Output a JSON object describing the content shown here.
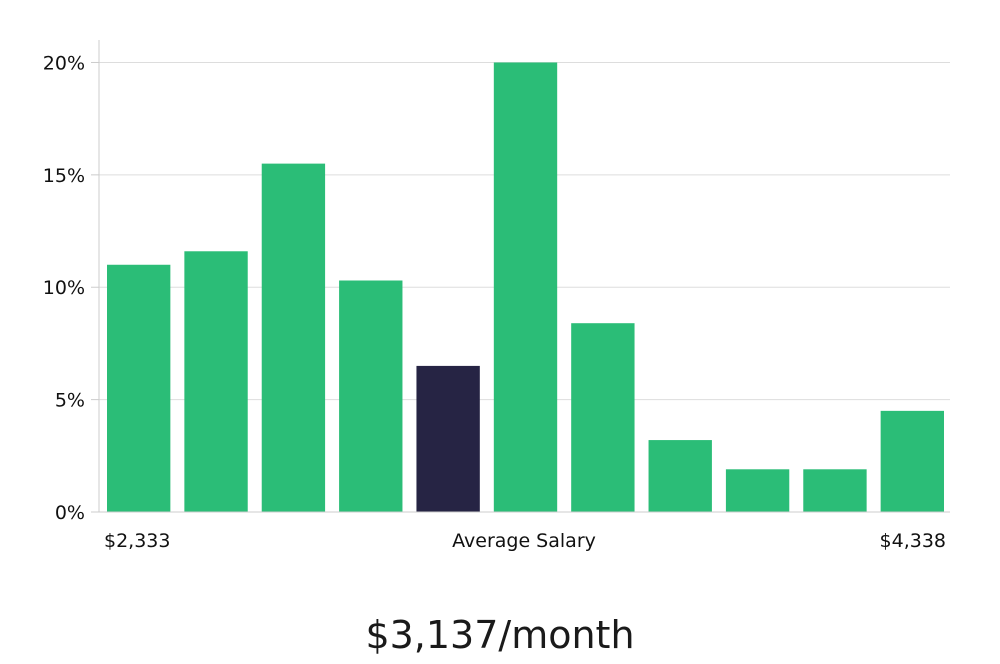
{
  "chart_data": {
    "type": "bar",
    "values": [
      11.0,
      11.6,
      15.5,
      10.3,
      6.5,
      20.0,
      8.4,
      3.2,
      1.9,
      1.9,
      4.5
    ],
    "highlight_index": 4,
    "ylim": [
      0,
      21
    ],
    "yticks": [
      0,
      5,
      10,
      15,
      20
    ],
    "ytick_labels": [
      "0%",
      "5%",
      "10%",
      "15%",
      "20%"
    ],
    "x_min_label": "$2,333",
    "x_center_label": "Average Salary",
    "x_max_label": "$4,338",
    "grid": true
  },
  "salary_summary": "$3,137/month",
  "colors": {
    "bar": "#2bbd77",
    "highlight": "#262444",
    "grid": "#dddddd",
    "axis": "#cccccc",
    "text": "#111111"
  }
}
